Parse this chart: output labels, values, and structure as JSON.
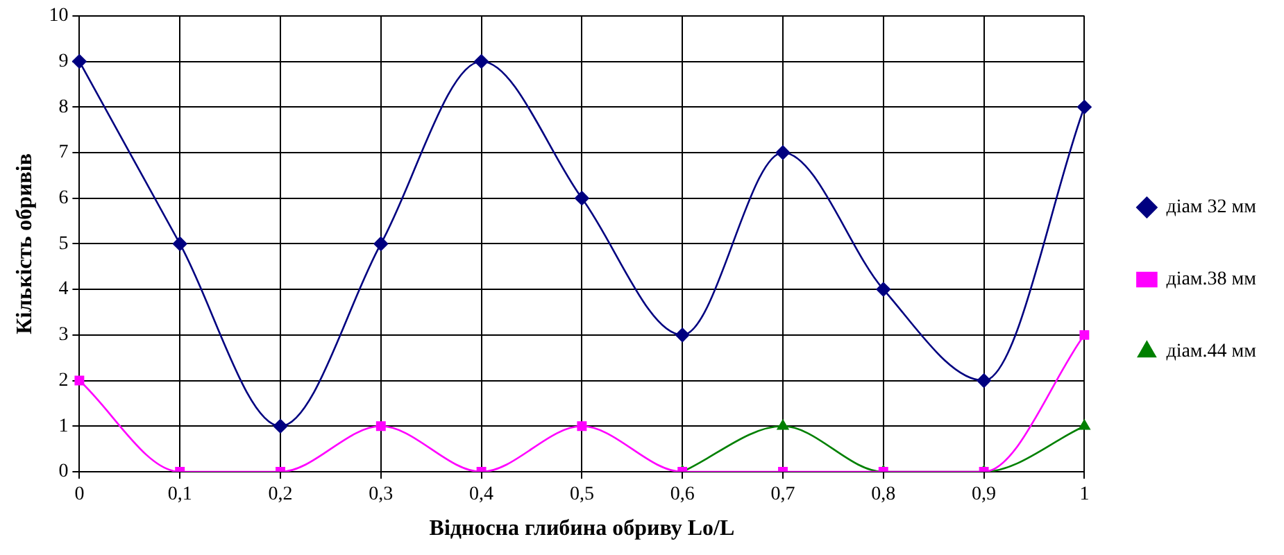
{
  "chart_data": {
    "type": "line",
    "xlabel": "Відносна глибина обриву Lo/L",
    "ylabel": "Кількість обривів",
    "categories": [
      "0",
      "0,1",
      "0,2",
      "0,3",
      "0,4",
      "0,5",
      "0,6",
      "0,7",
      "0,8",
      "0,9",
      "1"
    ],
    "series": [
      {
        "name": "діам 32 мм",
        "color": "#000080",
        "marker": "diamond",
        "values": [
          9,
          5,
          1,
          5,
          9,
          6,
          3,
          7,
          4,
          2,
          8
        ]
      },
      {
        "name": "діам.38 мм",
        "color": "#ff00ff",
        "marker": "square",
        "values": [
          2,
          0,
          0,
          1,
          0,
          1,
          0,
          0,
          0,
          0,
          3
        ]
      },
      {
        "name": "діам.44 мм",
        "color": "#008000",
        "marker": "triangle",
        "values": [
          null,
          null,
          null,
          null,
          null,
          null,
          0,
          1,
          0,
          0,
          1
        ]
      }
    ],
    "ylim": [
      0,
      10
    ],
    "yticks": [
      0,
      1,
      2,
      3,
      4,
      5,
      6,
      7,
      8,
      9,
      10
    ],
    "grid": true,
    "legend": "right",
    "line_style": "solid"
  }
}
